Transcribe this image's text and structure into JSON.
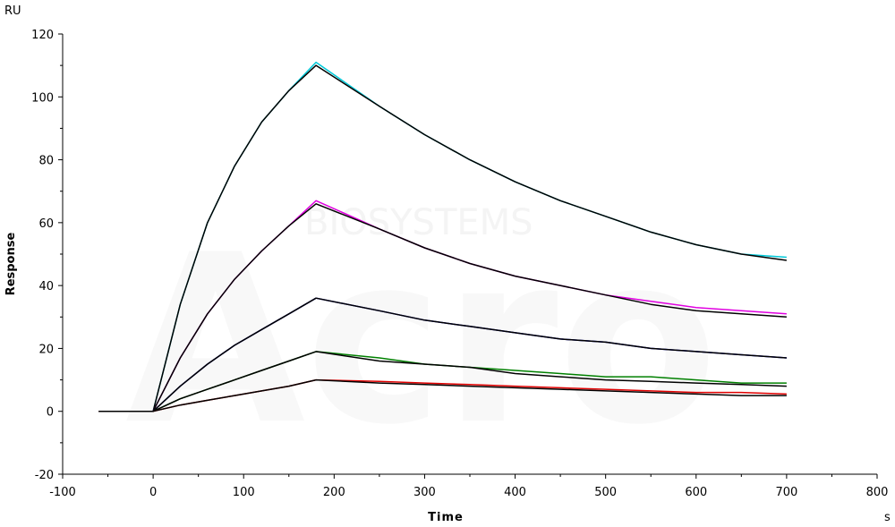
{
  "chart_data": {
    "type": "line",
    "xlabel": "Time",
    "ylabel": "Response",
    "x_unit": "s",
    "y_unit": "RU",
    "xlim": [
      -100,
      800
    ],
    "ylim": [
      -20,
      120
    ],
    "xticks": [
      -100,
      0,
      100,
      200,
      300,
      400,
      500,
      600,
      700,
      800
    ],
    "yticks": [
      -20,
      0,
      20,
      40,
      60,
      80,
      100,
      120
    ],
    "grid": false,
    "series": [
      {
        "color": "#00c8d8",
        "x": [
          -60,
          0,
          30,
          60,
          90,
          120,
          150,
          180,
          250,
          300,
          350,
          400,
          450,
          500,
          550,
          600,
          650,
          700
        ],
        "y": [
          0,
          0,
          34,
          60,
          78,
          92,
          102,
          111,
          97,
          88,
          80,
          73,
          67,
          62,
          57,
          53,
          50,
          49
        ]
      },
      {
        "color": "#000000",
        "x": [
          -60,
          0,
          30,
          60,
          90,
          120,
          150,
          180,
          250,
          300,
          350,
          400,
          450,
          500,
          550,
          600,
          650,
          700
        ],
        "y": [
          0,
          0,
          34,
          60,
          78,
          92,
          102,
          110,
          97,
          88,
          80,
          73,
          67,
          62,
          57,
          53,
          50,
          48
        ]
      },
      {
        "color": "#e000e0",
        "x": [
          -60,
          0,
          30,
          60,
          90,
          120,
          150,
          180,
          250,
          300,
          350,
          400,
          450,
          500,
          550,
          600,
          650,
          700
        ],
        "y": [
          0,
          0,
          17,
          31,
          42,
          51,
          59,
          67,
          58,
          52,
          47,
          43,
          40,
          37,
          35,
          33,
          32,
          31
        ]
      },
      {
        "color": "#000000",
        "x": [
          -60,
          0,
          30,
          60,
          90,
          120,
          150,
          180,
          250,
          300,
          350,
          400,
          450,
          500,
          550,
          600,
          650,
          700
        ],
        "y": [
          0,
          0,
          17,
          31,
          42,
          51,
          59,
          66,
          58,
          52,
          47,
          43,
          40,
          37,
          34,
          32,
          31,
          30
        ]
      },
      {
        "color": "#0000d0",
        "x": [
          -60,
          0,
          30,
          60,
          90,
          120,
          150,
          180,
          250,
          300,
          350,
          400,
          450,
          500,
          550,
          600,
          650,
          700
        ],
        "y": [
          0,
          0,
          8,
          15,
          21,
          26,
          31,
          36,
          32,
          29,
          27,
          25,
          23,
          22,
          20,
          19,
          18,
          17
        ]
      },
      {
        "color": "#000000",
        "x": [
          -60,
          0,
          30,
          60,
          90,
          120,
          150,
          180,
          250,
          300,
          350,
          400,
          450,
          500,
          550,
          600,
          650,
          700
        ],
        "y": [
          0,
          0,
          8,
          15,
          21,
          26,
          31,
          36,
          32,
          29,
          27,
          25,
          23,
          22,
          20,
          19,
          18,
          17
        ]
      },
      {
        "color": "#008000",
        "x": [
          -60,
          0,
          30,
          60,
          90,
          120,
          150,
          180,
          250,
          300,
          350,
          400,
          450,
          500,
          550,
          600,
          650,
          700
        ],
        "y": [
          0,
          0,
          4,
          7,
          10,
          13,
          16,
          19,
          17,
          15,
          14,
          13,
          12,
          11,
          11,
          10,
          9,
          9
        ]
      },
      {
        "color": "#000000",
        "x": [
          -60,
          0,
          30,
          60,
          90,
          120,
          150,
          180,
          250,
          300,
          350,
          400,
          450,
          500,
          550,
          600,
          650,
          700
        ],
        "y": [
          0,
          0,
          4,
          7,
          10,
          13,
          16,
          19,
          16,
          15,
          14,
          12,
          11,
          10,
          9.5,
          9,
          8.5,
          8
        ]
      },
      {
        "color": "#e00000",
        "x": [
          -60,
          0,
          30,
          60,
          90,
          120,
          150,
          180,
          250,
          300,
          350,
          400,
          450,
          500,
          550,
          600,
          650,
          700
        ],
        "y": [
          0,
          0,
          2,
          3.5,
          5,
          6.5,
          8,
          10,
          9.5,
          9,
          8.5,
          8,
          7.5,
          7,
          6.5,
          6,
          6,
          5.5
        ]
      },
      {
        "color": "#000000",
        "x": [
          -60,
          0,
          30,
          60,
          90,
          120,
          150,
          180,
          250,
          300,
          350,
          400,
          450,
          500,
          550,
          600,
          650,
          700
        ],
        "y": [
          0,
          0,
          2,
          3.5,
          5,
          6.5,
          8,
          10,
          9,
          8.5,
          8,
          7.5,
          7,
          6.5,
          6,
          5.5,
          5,
          5
        ]
      }
    ]
  }
}
